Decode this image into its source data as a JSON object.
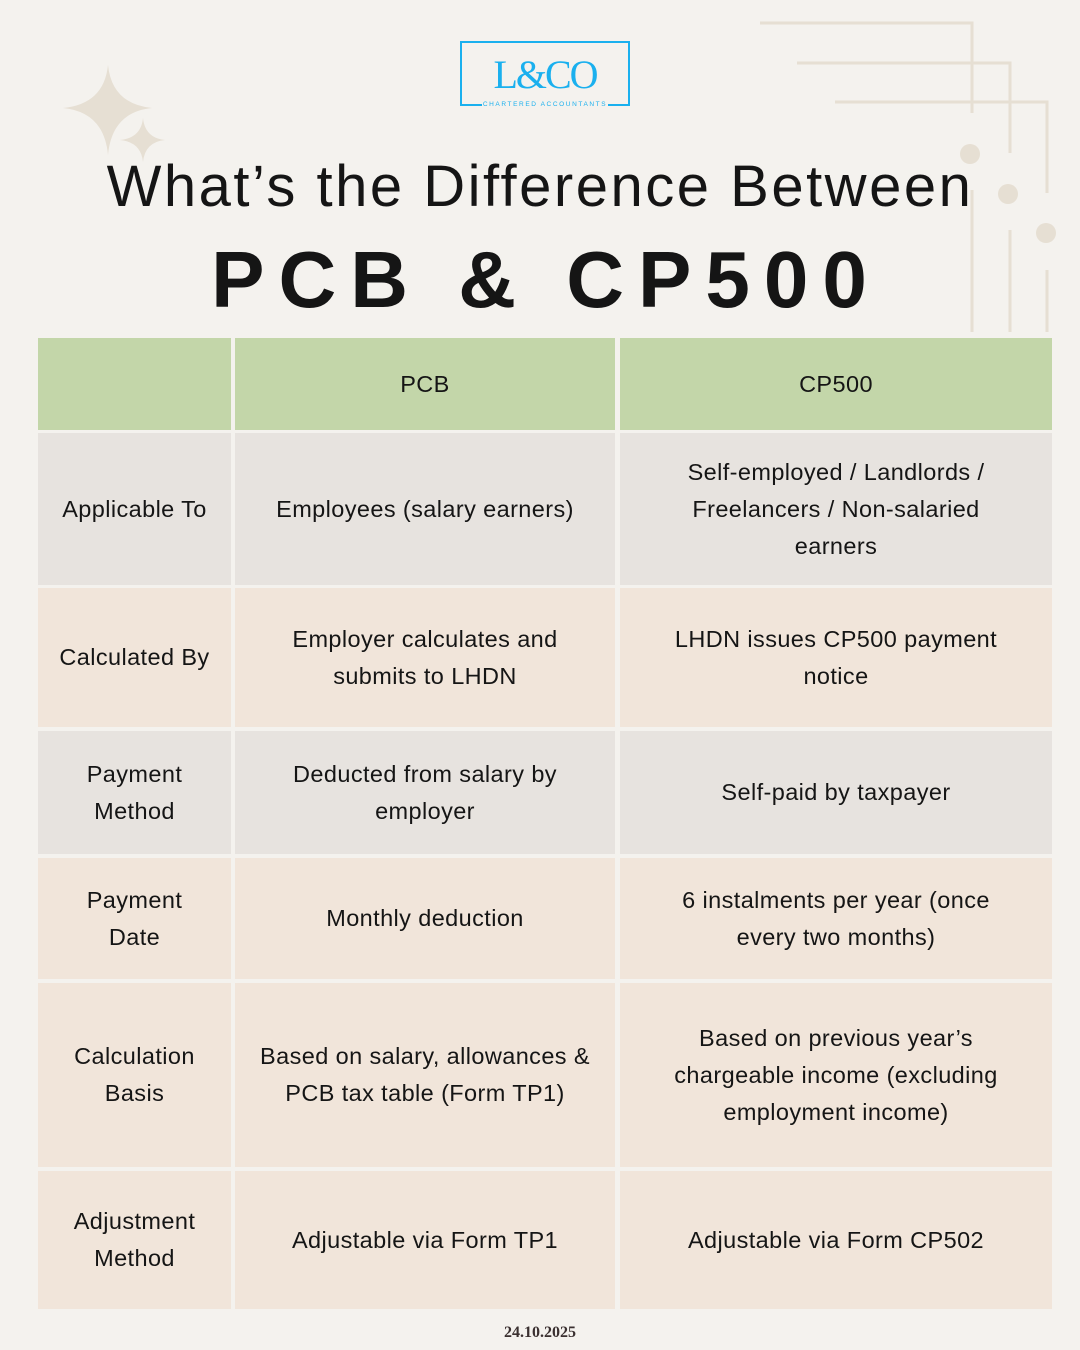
{
  "logo": {
    "name": "L&CO",
    "tagline": "CHARTERED ACCOUNTANTS",
    "color": "#1ab0ee"
  },
  "title": {
    "line1": "What’s the Difference Between",
    "line2": "PCB & CP500"
  },
  "table": {
    "headers": [
      "",
      "PCB",
      "CP500"
    ],
    "rows": [
      {
        "label": "Applicable To",
        "pcb": "Employees (salary earners)",
        "cp500": "Self-employed / Landlords / Freelancers / Non-salaried earners"
      },
      {
        "label": "Calculated By",
        "pcb": "Employer calculates and submits to LHDN",
        "cp500": "LHDN issues CP500 payment notice"
      },
      {
        "label": "Payment Method",
        "pcb": "Deducted from salary by employer",
        "cp500": "Self-paid by taxpayer"
      },
      {
        "label": "Payment Date",
        "pcb": "Monthly deduction",
        "cp500": "6 instalments per year (once every two months)"
      },
      {
        "label": "Calculation Basis",
        "pcb": "Based on salary, allowances & PCB tax table (Form TP1)",
        "cp500": "Based on previous year’s chargeable income (excluding employment income)"
      },
      {
        "label": "Adjustment Method",
        "pcb": "Adjustable via Form TP1",
        "cp500": "Adjustable via Form CP502"
      }
    ]
  },
  "colors": {
    "header": "#c3d6a9",
    "row_gray": "#e7e3df",
    "row_beige": "#f1e5da",
    "background": "#f4f2ee"
  },
  "date": "24.10.2025"
}
